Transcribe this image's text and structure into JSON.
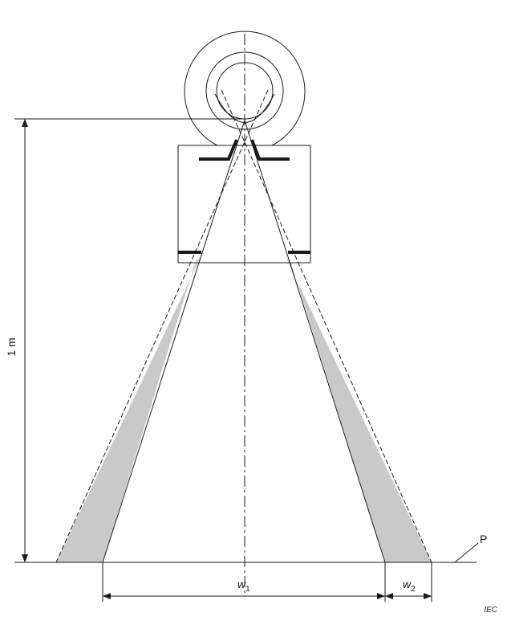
{
  "labels": {
    "distance": "1 m",
    "plane": "P",
    "width1_main": "w",
    "width1_sub": "1",
    "width2_main": "w",
    "width2_sub": "2",
    "credit": "IEC"
  },
  "colors": {
    "line": "#1a1a1a",
    "penumbra": "#c9c9c9",
    "background": "#ffffff"
  }
}
